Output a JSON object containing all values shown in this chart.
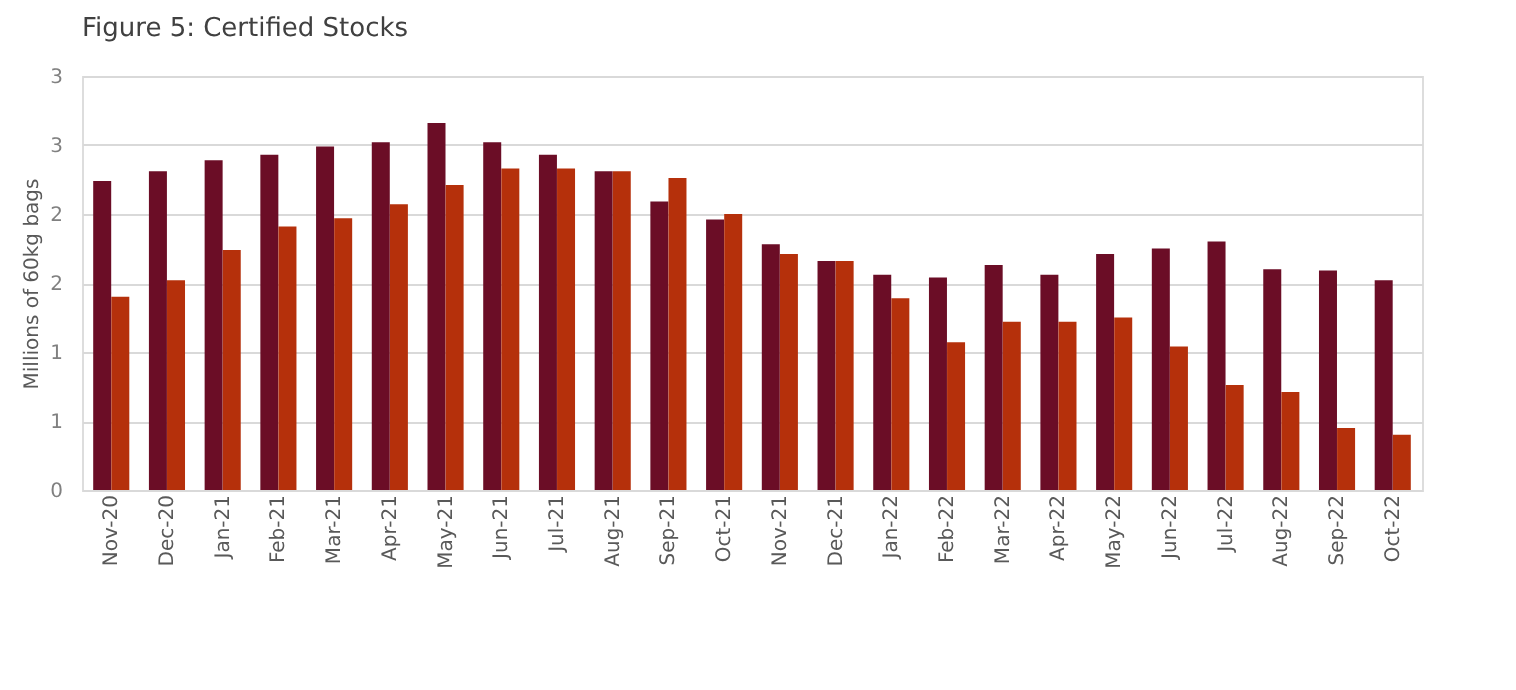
{
  "chart_data": {
    "type": "bar",
    "title": "Figure 5: Certified Stocks",
    "ylabel": "Millions of 60kg bags",
    "categories": [
      "Nov-20",
      "Dec-20",
      "Jan-21",
      "Feb-21",
      "Mar-21",
      "Apr-21",
      "May-21",
      "Jun-21",
      "Jul-21",
      "Aug-21",
      "Sep-21",
      "Oct-21",
      "Nov-21",
      "Dec-21",
      "Jan-22",
      "Feb-22",
      "Mar-22",
      "Apr-22",
      "May-22",
      "Jun-22",
      "Jul-22",
      "Aug-22",
      "Sep-22",
      "Oct-22"
    ],
    "series": [
      {
        "color": "#6b0d26",
        "values": [
          2.24,
          2.31,
          2.39,
          2.43,
          2.49,
          2.52,
          2.66,
          2.52,
          2.43,
          2.31,
          2.09,
          1.96,
          1.78,
          1.66,
          1.56,
          1.54,
          1.63,
          1.56,
          1.71,
          1.75,
          1.8,
          1.6,
          1.59,
          1.52
        ]
      },
      {
        "color": "#b5300b",
        "values": [
          1.4,
          1.52,
          1.74,
          1.91,
          1.97,
          2.07,
          2.21,
          2.33,
          2.33,
          2.31,
          2.26,
          2.0,
          1.71,
          1.66,
          1.39,
          1.07,
          1.22,
          1.22,
          1.25,
          1.04,
          0.76,
          0.71,
          0.45,
          0.4
        ]
      }
    ],
    "ylim": [
      0,
      3
    ],
    "yticks": [
      0,
      {
        "value": 0.5,
        "label": "1"
      },
      1,
      {
        "value": 1.5,
        "label": "2"
      },
      2,
      {
        "value": 2.5,
        "label": "3"
      },
      3
    ],
    "grid": "y",
    "legend": false
  }
}
